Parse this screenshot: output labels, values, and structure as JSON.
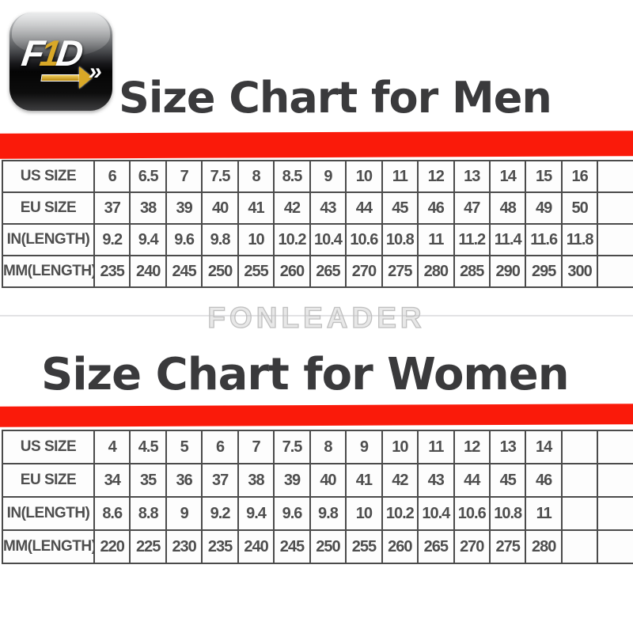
{
  "logo": {
    "letters": [
      "F",
      "1",
      "D"
    ],
    "chevron_glyph": "»"
  },
  "watermark": "FONLEADER",
  "men": {
    "title": "Size Chart for Men",
    "table": {
      "rows": [
        {
          "label": "US SIZE",
          "values": [
            "6",
            "6.5",
            "7",
            "7.5",
            "8",
            "8.5",
            "9",
            "10",
            "11",
            "12",
            "13",
            "14",
            "15",
            "16",
            ""
          ]
        },
        {
          "label": "EU SIZE",
          "values": [
            "37",
            "38",
            "39",
            "40",
            "41",
            "42",
            "43",
            "44",
            "45",
            "46",
            "47",
            "48",
            "49",
            "50",
            ""
          ]
        },
        {
          "label": "IN(LENGTH)",
          "values": [
            "9.2",
            "9.4",
            "9.6",
            "9.8",
            "10",
            "10.2",
            "10.4",
            "10.6",
            "10.8",
            "11",
            "11.2",
            "11.4",
            "11.6",
            "11.8",
            ""
          ]
        },
        {
          "label": "MM(LENGTH)",
          "values": [
            "235",
            "240",
            "245",
            "250",
            "255",
            "260",
            "265",
            "270",
            "275",
            "280",
            "285",
            "290",
            "295",
            "300",
            ""
          ]
        }
      ]
    }
  },
  "women": {
    "title": "Size Chart for Women",
    "table": {
      "rows": [
        {
          "label": "US SIZE",
          "values": [
            "4",
            "4.5",
            "5",
            "6",
            "7",
            "7.5",
            "8",
            "9",
            "10",
            "11",
            "12",
            "13",
            "14",
            "",
            ""
          ]
        },
        {
          "label": "EU SIZE",
          "values": [
            "34",
            "35",
            "36",
            "37",
            "38",
            "39",
            "40",
            "41",
            "42",
            "43",
            "44",
            "45",
            "46",
            "",
            ""
          ]
        },
        {
          "label": "IN(LENGTH)",
          "values": [
            "8.6",
            "8.8",
            "9",
            "9.2",
            "9.4",
            "9.6",
            "9.8",
            "10",
            "10.2",
            "10.4",
            "10.6",
            "10.8",
            "11",
            "",
            ""
          ]
        },
        {
          "label": "MM(LENGTH)",
          "values": [
            "220",
            "225",
            "230",
            "235",
            "240",
            "245",
            "250",
            "255",
            "260",
            "265",
            "270",
            "275",
            "280",
            "",
            ""
          ]
        }
      ]
    }
  },
  "colors": {
    "accent_red": "#fa1a0a",
    "title_gray": "#3a3a3c",
    "table_ink": "#4e4e4e",
    "logo_gold": "#d9a827"
  },
  "chart_data": [
    {
      "type": "table",
      "title": "Size Chart for Men",
      "row_labels": [
        "US SIZE",
        "EU SIZE",
        "IN(LENGTH)",
        "MM(LENGTH)"
      ],
      "rows": [
        [
          6,
          6.5,
          7,
          7.5,
          8,
          8.5,
          9,
          10,
          11,
          12,
          13,
          14,
          15,
          16
        ],
        [
          37,
          38,
          39,
          40,
          41,
          42,
          43,
          44,
          45,
          46,
          47,
          48,
          49,
          50
        ],
        [
          9.2,
          9.4,
          9.6,
          9.8,
          10,
          10.2,
          10.4,
          10.6,
          10.8,
          11,
          11.2,
          11.4,
          11.6,
          11.8
        ],
        [
          235,
          240,
          245,
          250,
          255,
          260,
          265,
          270,
          275,
          280,
          285,
          290,
          295,
          300
        ]
      ]
    },
    {
      "type": "table",
      "title": "Size Chart for Women",
      "row_labels": [
        "US SIZE",
        "EU SIZE",
        "IN(LENGTH)",
        "MM(LENGTH)"
      ],
      "rows": [
        [
          4,
          4.5,
          5,
          6,
          7,
          7.5,
          8,
          9,
          10,
          11,
          12,
          13,
          14
        ],
        [
          34,
          35,
          36,
          37,
          38,
          39,
          40,
          41,
          42,
          43,
          44,
          45,
          46
        ],
        [
          8.6,
          8.8,
          9,
          9.2,
          9.4,
          9.6,
          9.8,
          10,
          10.2,
          10.4,
          10.6,
          10.8,
          11
        ],
        [
          220,
          225,
          230,
          235,
          240,
          245,
          250,
          255,
          260,
          265,
          270,
          275,
          280
        ]
      ]
    }
  ]
}
